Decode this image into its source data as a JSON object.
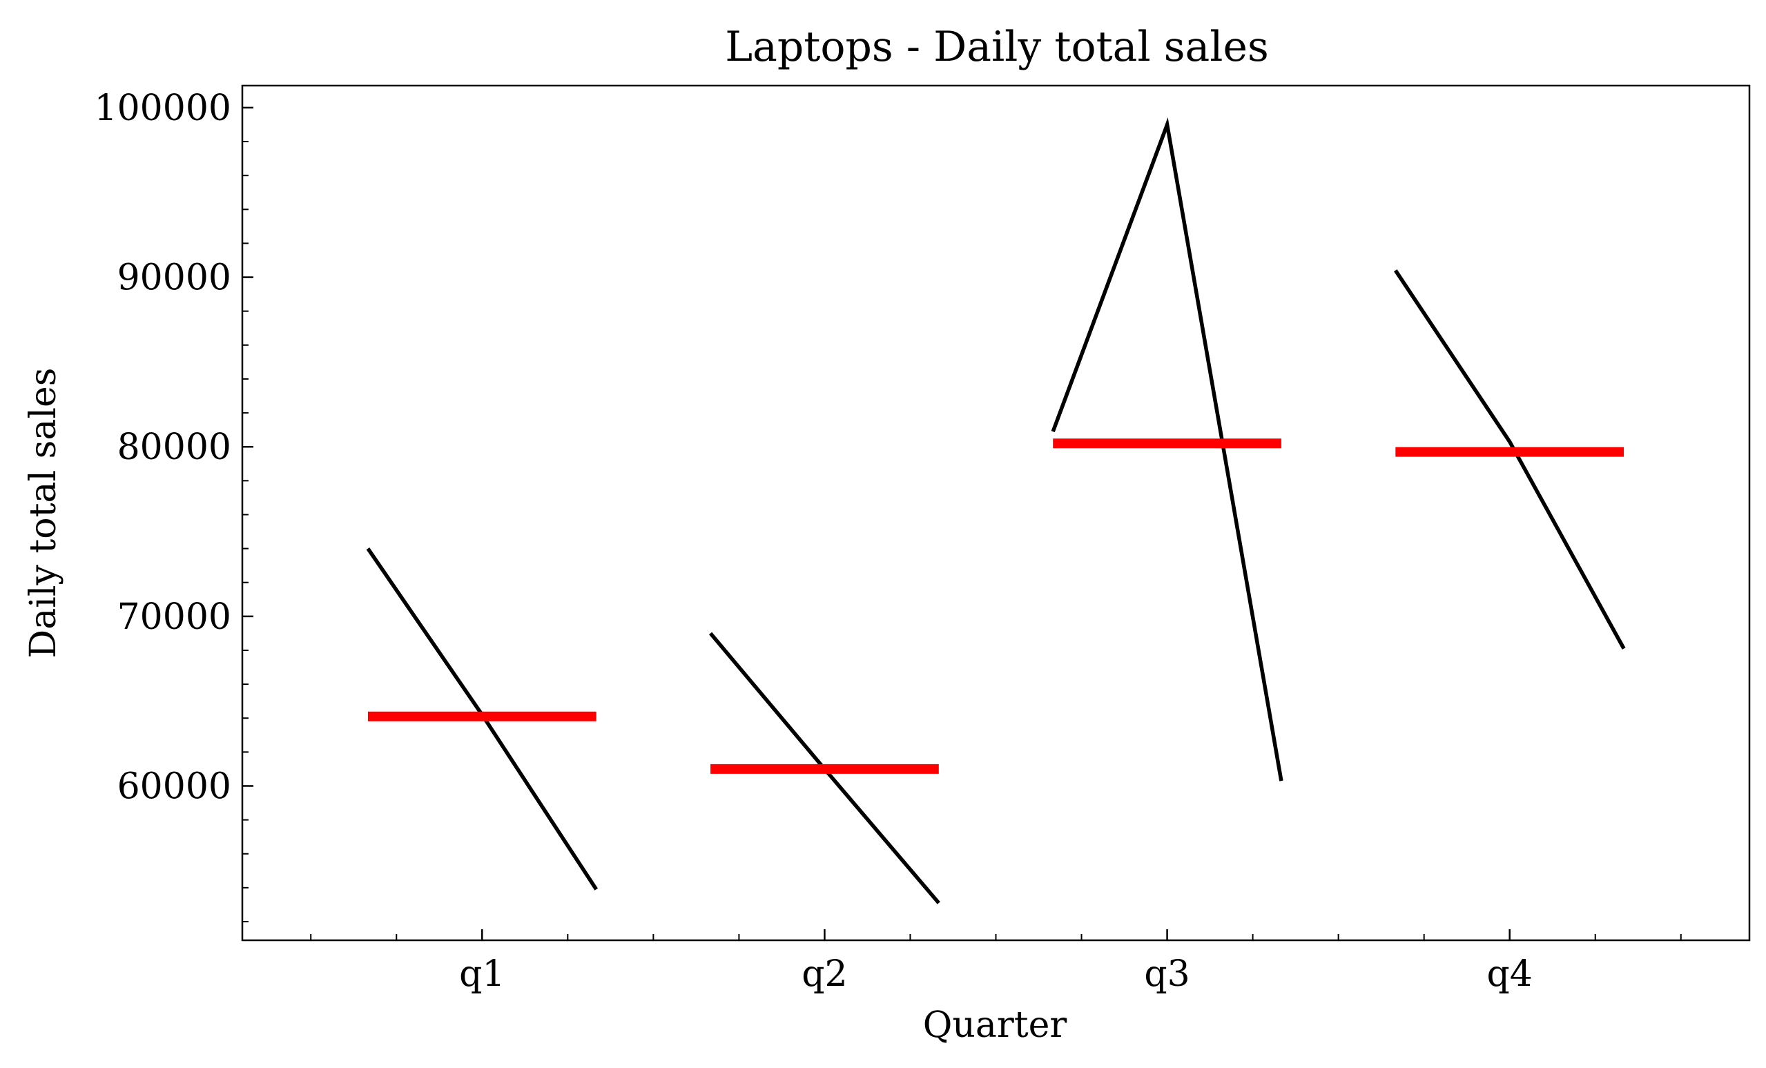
{
  "chart_data": {
    "type": "line",
    "title": "Laptops - Daily total sales",
    "xlabel": "Quarter",
    "ylabel": "Daily total sales",
    "categories": [
      "q1",
      "q2",
      "q3",
      "q4"
    ],
    "yticks": [
      "60000",
      "70000",
      "80000",
      "90000",
      "100000"
    ],
    "ylim": [
      50900,
      101300
    ],
    "grid": false,
    "series": [
      {
        "kind": "daily",
        "color": "#000000",
        "segments": [
          {
            "category": "q1",
            "values": [
              74000,
              64200,
              53900
            ]
          },
          {
            "category": "q2",
            "values": [
              69000,
              61000,
              53100
            ]
          },
          {
            "category": "q3",
            "values": [
              80900,
              99000,
              60300
            ]
          },
          {
            "category": "q4",
            "values": [
              90400,
              80300,
              68100
            ]
          }
        ]
      },
      {
        "kind": "mean",
        "color": "#ff0000",
        "values": [
          64100,
          61000,
          80200,
          79700
        ]
      }
    ]
  }
}
